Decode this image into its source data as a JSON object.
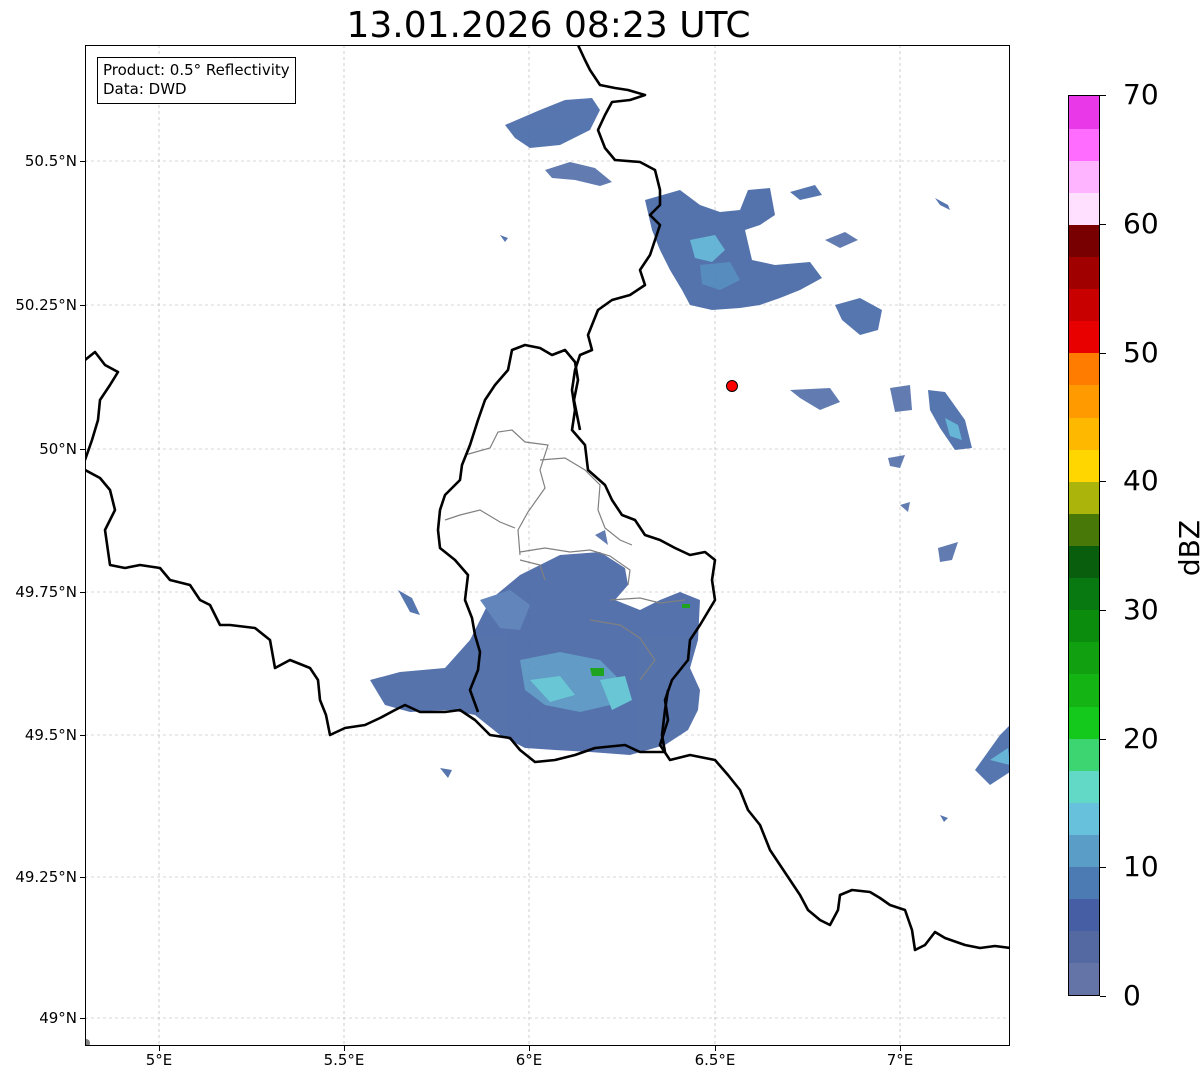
{
  "title": "13.01.2026 08:23 UTC",
  "info": {
    "product_line": "Product: 0.5° Reflectivity",
    "data_line": "Data: DWD"
  },
  "map": {
    "lon_range": [
      4.8,
      7.3
    ],
    "lat_range": [
      48.95,
      50.7
    ],
    "x_ticks": [
      "5°E",
      "5.5°E",
      "6°E",
      "6.5°E",
      "7°E"
    ],
    "y_ticks": [
      "50.5°N",
      "50.25°N",
      "50°N",
      "49.75°N",
      "49.5°N",
      "49.25°N",
      "49°N"
    ],
    "grid": true,
    "radar_site": {
      "lon": 6.55,
      "lat": 50.11,
      "color": "#ff0000"
    },
    "border_color": "#000000",
    "admin_border_color": "#808080"
  },
  "colorbar": {
    "label": "dBZ",
    "range": [
      0,
      70
    ],
    "tick_labels": [
      "0",
      "10",
      "20",
      "30",
      "40",
      "50",
      "60",
      "70"
    ],
    "colors": [
      "#6474a6",
      "#5468a2",
      "#465ea4",
      "#4c7bb4",
      "#5a9ec8",
      "#68c1dc",
      "#62d8c6",
      "#3dd472",
      "#14c81c",
      "#14b414",
      "#10a010",
      "#0c8c0c",
      "#087810",
      "#085e0c",
      "#487808",
      "#aab40a",
      "#ffd600",
      "#ffb800",
      "#ff9a00",
      "#ff7c00",
      "#e80000",
      "#c80000",
      "#a00000",
      "#780000",
      "#ffe0ff",
      "#ffb4ff",
      "#ff6cff",
      "#e838e8"
    ]
  },
  "chart_data": {
    "type": "heatmap",
    "title": "13.01.2026 08:23 UTC",
    "xlabel": "",
    "ylabel": "",
    "xlim": [
      4.8,
      7.3
    ],
    "ylim": [
      48.95,
      50.7
    ],
    "colorbar_label": "dBZ",
    "colorbar_range": [
      0,
      70
    ]
  }
}
